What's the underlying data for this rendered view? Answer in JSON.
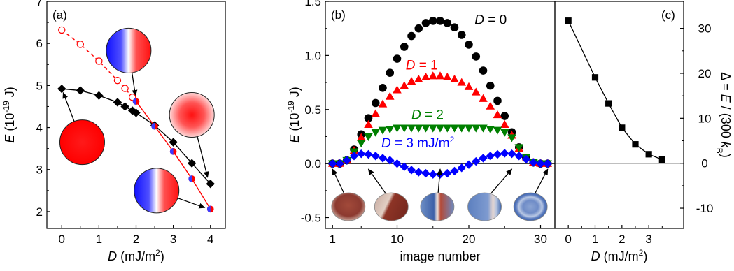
{
  "chart_data": [
    {
      "panel": "(a)",
      "type": "line",
      "xlabel": {
        "var": "D",
        "unit": " (mJ/m",
        "sup": "2",
        "close": ")"
      },
      "ylabel": {
        "var": "E",
        "unit": " (10",
        "sup": "-19",
        "close": " J)"
      },
      "xlim": [
        -0.4,
        4.4
      ],
      "ylim": [
        1.6,
        7.0
      ],
      "xticks": [
        0,
        1,
        2,
        3,
        4
      ],
      "yticks": [
        2,
        3,
        4,
        5,
        6,
        7
      ],
      "grid": false,
      "series": [
        {
          "color": "#000000",
          "marker": "diamond",
          "line": "solid",
          "x": [
            0,
            0.5,
            1,
            1.5,
            1.7,
            1.9,
            2.0,
            2.5,
            3.0,
            3.5,
            4.0
          ],
          "y": [
            4.92,
            4.88,
            4.76,
            4.6,
            4.5,
            4.4,
            4.35,
            4.05,
            3.65,
            3.15,
            2.66
          ]
        },
        {
          "color": "#ff0000",
          "marker": "open-circle",
          "line": "dashed",
          "x": [
            0,
            0.5,
            1,
            1.5,
            1.7,
            1.9
          ],
          "y": [
            6.32,
            5.98,
            5.58,
            5.12,
            4.93,
            4.72
          ]
        },
        {
          "color": "#ff0000",
          "marker": "half-circle",
          "line": "solid",
          "x": [
            2.0,
            2.5,
            3.0,
            3.5,
            4.0
          ],
          "y": [
            4.62,
            4.03,
            3.43,
            2.78,
            2.06
          ]
        }
      ],
      "insets": [
        {
          "style": "uniform",
          "cx": 0.55,
          "cy": 3.65,
          "arrow_to": [
            0,
            4.92
          ]
        },
        {
          "style": "domain-wall",
          "cx": 1.8,
          "cy": 5.83,
          "arrow_to": [
            2.0,
            4.66
          ]
        },
        {
          "style": "radial",
          "cx": 3.5,
          "cy": 4.3,
          "arrow_to": [
            3.95,
            2.72
          ]
        },
        {
          "style": "domain-wall",
          "cx": 2.55,
          "cy": 2.5,
          "arrow_to": [
            3.95,
            2.06
          ]
        }
      ]
    },
    {
      "panel": "(b)",
      "type": "scatter",
      "xlabel": "image number",
      "ylabel": {
        "var": "E",
        "unit": " (10",
        "sup": "-19",
        "close": " J)"
      },
      "xlim": [
        0,
        32
      ],
      "ylim": [
        -0.6,
        1.5
      ],
      "xticks": [
        1,
        10,
        20,
        30
      ],
      "yticks": [
        -0.5,
        0.0,
        0.5,
        1.0,
        1.5
      ],
      "ytick_labels": [
        "-0.5",
        "0.0",
        "0.5",
        "1.0",
        "1.5"
      ],
      "zero_line": true,
      "grid": false,
      "series": [
        {
          "color": "#000000",
          "marker": "circle",
          "label": {
            "var": "D",
            "text": " = 0"
          },
          "label_at": [
            20.8,
            1.29
          ],
          "x": [
            1,
            2,
            3,
            4,
            5,
            6,
            7,
            8,
            9,
            10,
            11,
            12,
            13,
            14,
            15,
            16,
            17,
            18,
            19,
            20,
            21,
            22,
            23,
            24,
            25,
            26,
            27,
            28,
            29,
            30,
            31
          ],
          "y": [
            0.0,
            0.0,
            0.03,
            0.13,
            0.27,
            0.42,
            0.56,
            0.7,
            0.84,
            0.97,
            1.08,
            1.18,
            1.25,
            1.3,
            1.32,
            1.32,
            1.3,
            1.26,
            1.19,
            1.1,
            0.99,
            0.86,
            0.72,
            0.58,
            0.44,
            0.29,
            0.15,
            0.05,
            0.01,
            0.0,
            0.0
          ]
        },
        {
          "color": "#ff0000",
          "marker": "triangle-up",
          "label": {
            "var": "D",
            "text": " = 1"
          },
          "label_at": [
            11.2,
            0.87
          ],
          "x": [
            1,
            2,
            3,
            4,
            5,
            6,
            7,
            8,
            9,
            10,
            11,
            12,
            13,
            14,
            15,
            16,
            17,
            18,
            19,
            20,
            21,
            22,
            23,
            24,
            25,
            26,
            27,
            28,
            29,
            30,
            31
          ],
          "y": [
            0.0,
            0.0,
            0.03,
            0.12,
            0.24,
            0.36,
            0.46,
            0.55,
            0.62,
            0.68,
            0.72,
            0.76,
            0.78,
            0.8,
            0.81,
            0.81,
            0.8,
            0.78,
            0.75,
            0.71,
            0.66,
            0.6,
            0.53,
            0.45,
            0.36,
            0.26,
            0.14,
            0.05,
            0.01,
            0.0,
            0.0
          ]
        },
        {
          "color": "#008000",
          "marker": "triangle-down",
          "label": {
            "var": "D",
            "text": " = 2"
          },
          "label_at": [
            12.0,
            0.41
          ],
          "x": [
            1,
            2,
            3,
            4,
            5,
            6,
            7,
            8,
            9,
            10,
            11,
            12,
            13,
            14,
            15,
            16,
            17,
            18,
            19,
            20,
            21,
            22,
            23,
            24,
            25,
            26,
            27,
            28,
            29,
            30,
            31
          ],
          "y": [
            0.0,
            0.0,
            0.03,
            0.11,
            0.19,
            0.25,
            0.29,
            0.31,
            0.32,
            0.33,
            0.33,
            0.33,
            0.33,
            0.33,
            0.33,
            0.33,
            0.33,
            0.33,
            0.33,
            0.33,
            0.33,
            0.33,
            0.32,
            0.31,
            0.29,
            0.24,
            0.15,
            0.06,
            0.01,
            0.0,
            0.0
          ]
        },
        {
          "color": "#0000ff",
          "marker": "diamond",
          "label": {
            "var": "D",
            "text": " = 3 mJ/m",
            "sup": "2"
          },
          "label_at": [
            7.8,
            0.15
          ],
          "x": [
            1,
            2,
            3,
            4,
            5,
            6,
            7,
            8,
            9,
            10,
            11,
            12,
            13,
            14,
            15,
            16,
            17,
            18,
            19,
            20,
            21,
            22,
            23,
            24,
            25,
            26,
            27,
            28,
            29,
            30,
            31
          ],
          "y": [
            0.0,
            0.0,
            0.03,
            0.07,
            0.09,
            0.085,
            0.07,
            0.05,
            0.03,
            0.0,
            -0.03,
            -0.06,
            -0.08,
            -0.09,
            -0.1,
            -0.1,
            -0.09,
            -0.07,
            -0.04,
            -0.01,
            0.02,
            0.05,
            0.07,
            0.085,
            0.095,
            0.09,
            0.07,
            0.04,
            0.01,
            0.0,
            0.0
          ]
        }
      ],
      "snapshots": [
        {
          "style": "warm",
          "cx": 3.2,
          "arrow_to": 1
        },
        {
          "style": "half",
          "cx": 9.2,
          "arrow_to": 6
        },
        {
          "style": "stripe",
          "cx": 15.6,
          "arrow_to": 16
        },
        {
          "style": "cool",
          "cx": 22.2,
          "arrow_to": 26
        },
        {
          "style": "ring",
          "cx": 28.6,
          "arrow_to": 31
        }
      ]
    },
    {
      "panel": "(c)",
      "type": "line",
      "xlabel": {
        "var": "D",
        "unit": " (mJ/m",
        "sup": "2",
        "close": ")"
      },
      "ylabel": {
        "pre": "Δ = ",
        "var": "E",
        "mid": " / (300 ",
        "var2": "k",
        "sub": "B",
        "close": ")"
      },
      "xlim": [
        -0.5,
        4.3
      ],
      "ylim": [
        -14.5,
        36
      ],
      "xticks": [
        0,
        1,
        2,
        3
      ],
      "yticks": [
        -10,
        0,
        10,
        20,
        30
      ],
      "ytick_labels": [
        "-10",
        "0",
        "10",
        "20",
        "30"
      ],
      "zero_line": true,
      "grid": false,
      "series": [
        {
          "color": "#000000",
          "marker": "square",
          "line": "solid",
          "x": [
            0,
            1,
            1.5,
            2,
            2.5,
            3,
            3.5
          ],
          "y": [
            31.7,
            19.1,
            13.3,
            7.9,
            4.2,
            2.0,
            0.8
          ]
        }
      ]
    }
  ]
}
